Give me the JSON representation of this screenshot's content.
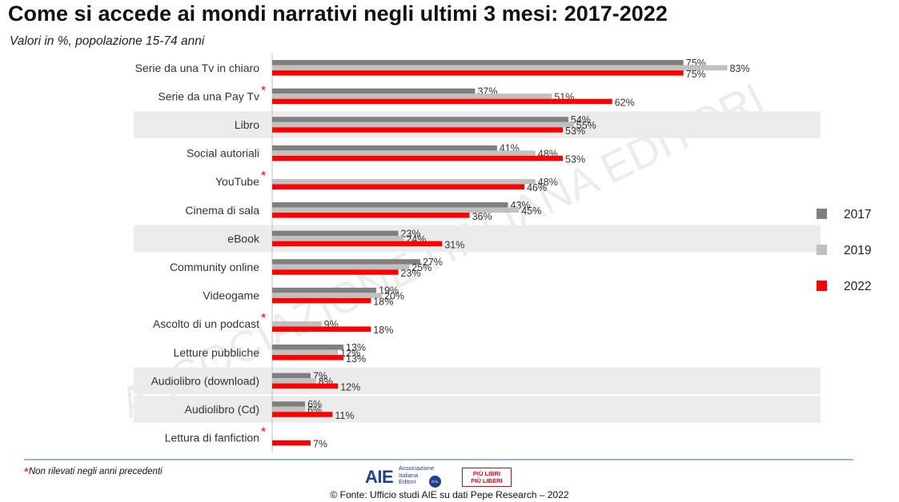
{
  "title": "Come si accede ai mondi narrativi negli ultimi 3 mesi: 2017-2022",
  "subtitle": "Valori in %, popolazione 15-74 anni",
  "watermark": "ASSOCIAZIONE ITALIANA EDITORI",
  "footnote": {
    "marker": "*",
    "text": "Non rilevati negli anni precedenti"
  },
  "source": "© Fonte: Ufficio studi AIE su dati Pepe Research – 2022",
  "logos": {
    "aie_mark": "AIE",
    "aie_lines": [
      "Associazione",
      "Italiana",
      "Editori"
    ],
    "aie_badge": "DAL 1869",
    "plpl_lines": [
      "PIÙ LIBRI",
      "PIÙ LIBERI"
    ]
  },
  "colors": {
    "2017": "#7f7f7f",
    "2019": "#c0c0c0",
    "2022": "#ff0000",
    "band": "#ebebeb",
    "asterisk": "#ff0000",
    "rule": "#2f6eb5"
  },
  "chart_data": {
    "type": "bar",
    "orientation": "horizontal",
    "value_suffix": "%",
    "categories": [
      "Serie da una Tv in chiaro",
      "Serie da una Pay Tv",
      "Libro",
      "Social autoriali",
      "YouTube",
      "Cinema di sala",
      "eBook",
      "Community online",
      "Videogame",
      "Ascolto di un podcast",
      "Letture pubbliche",
      "Audiolibro (download)",
      "Audiolibro (Cd)",
      "Lettura di fanfiction"
    ],
    "asterisk_categories": [
      "Serie da una Pay Tv",
      "YouTube",
      "Ascolto di un podcast",
      "Lettura di fanfiction"
    ],
    "shaded_categories": [
      "Libro",
      "eBook",
      "Audiolibro (download)",
      "Audiolibro (Cd)"
    ],
    "series": [
      {
        "name": "2017",
        "values": [
          75,
          37,
          54,
          41,
          null,
          43,
          23,
          27,
          19,
          null,
          13,
          7,
          6,
          null
        ]
      },
      {
        "name": "2019",
        "values": [
          83,
          51,
          55,
          48,
          48,
          45,
          24,
          25,
          20,
          9,
          12,
          8,
          6,
          null
        ]
      },
      {
        "name": "2022",
        "values": [
          75,
          62,
          53,
          53,
          46,
          36,
          31,
          23,
          18,
          18,
          13,
          12,
          11,
          7
        ]
      }
    ],
    "legend_position": "right",
    "grid": false
  }
}
